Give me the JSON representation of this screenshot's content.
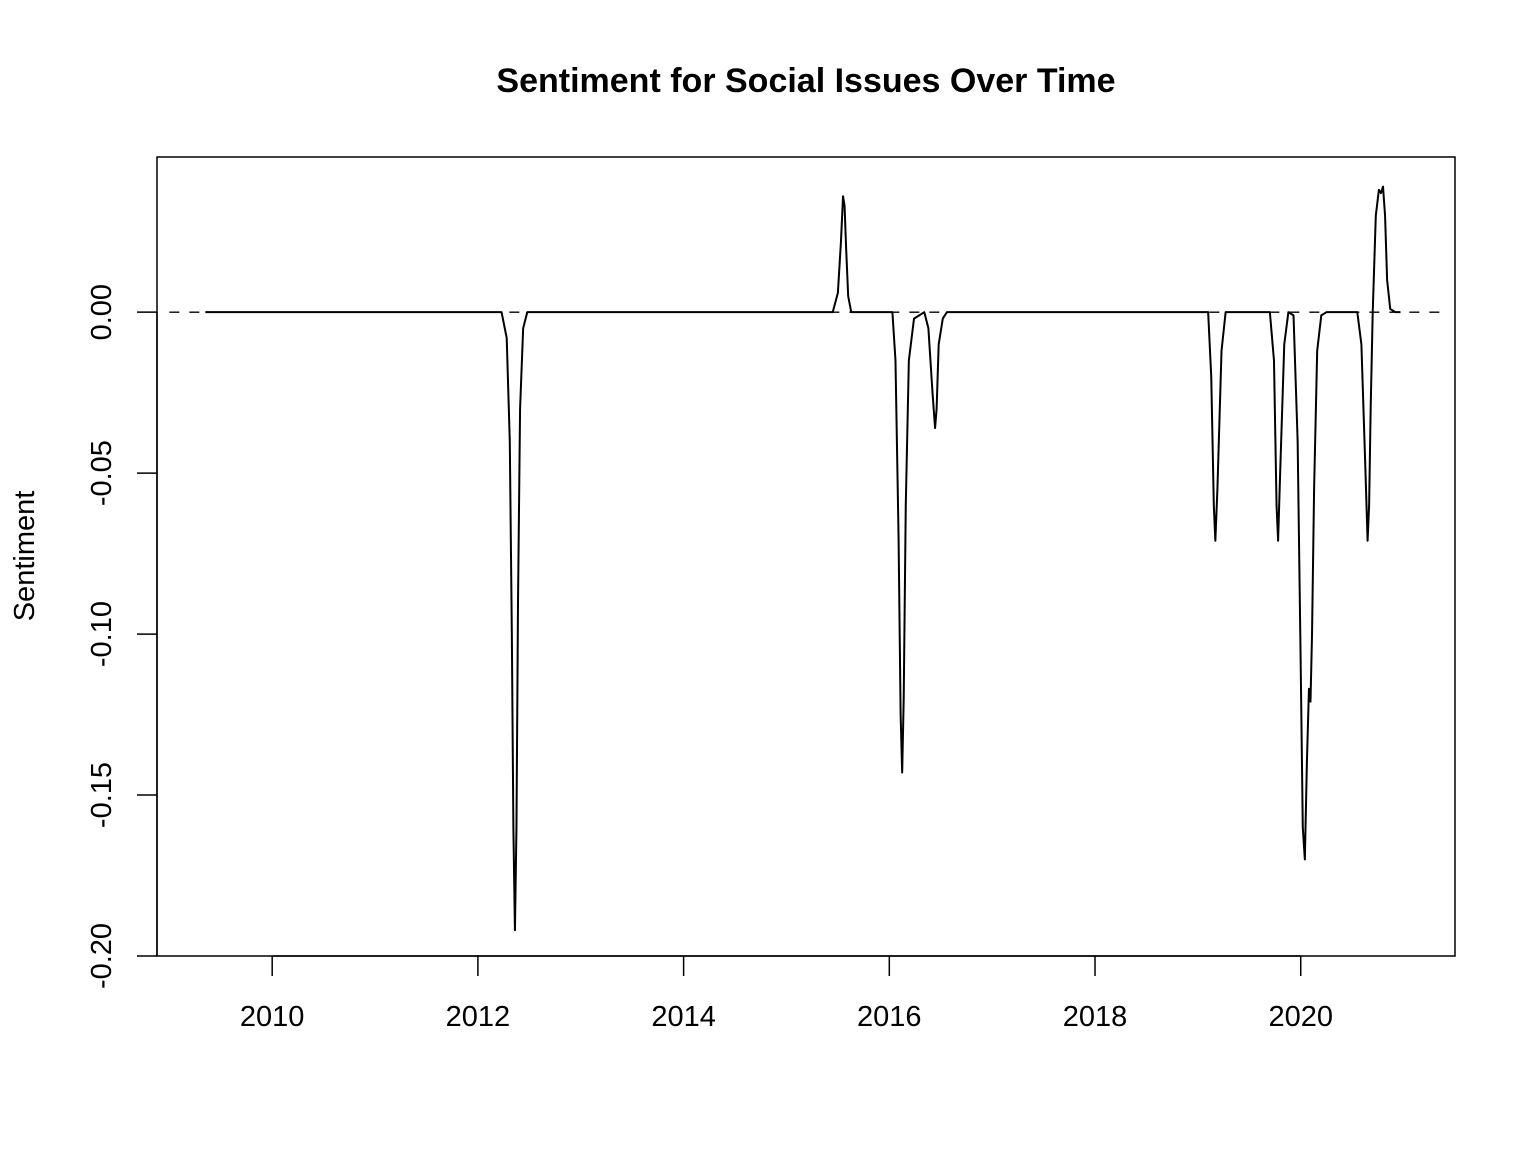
{
  "chart_data": {
    "type": "line",
    "title": "Sentiment for Social Issues Over Time",
    "xlabel": "",
    "ylabel": "Sentiment",
    "xlim": [
      2008.88,
      2021.5
    ],
    "ylim": [
      -0.2,
      0.0482
    ],
    "x_ticks": [
      2010,
      2012,
      2014,
      2016,
      2018,
      2020
    ],
    "x_tick_labels": [
      "2010",
      "2012",
      "2014",
      "2016",
      "2018",
      "2020"
    ],
    "y_ticks": [
      0.0,
      -0.05,
      -0.1,
      -0.15,
      -0.2
    ],
    "y_tick_labels": [
      "0.00",
      "-0.05",
      "-0.10",
      "-0.15",
      "-0.20"
    ],
    "grid": false,
    "reference_line": {
      "y": 0,
      "style": "dashed",
      "x_range": [
        2009.0,
        2021.4
      ]
    },
    "series": [
      {
        "color": "#000000",
        "x": [
          2009.35,
          2012.23,
          2012.28,
          2012.31,
          2012.33,
          2012.345,
          2012.36,
          2012.375,
          2012.39,
          2012.41,
          2012.44,
          2012.48,
          2015.45,
          2015.5,
          2015.53,
          2015.55,
          2015.565,
          2015.58,
          2015.6,
          2015.63,
          2015.68,
          2016.03,
          2016.06,
          2016.09,
          2016.11,
          2016.125,
          2016.14,
          2016.16,
          2016.19,
          2016.24,
          2016.34,
          2016.38,
          2016.42,
          2016.445,
          2016.46,
          2016.48,
          2016.52,
          2016.56,
          2019.1,
          2019.13,
          2019.155,
          2019.17,
          2019.19,
          2019.23,
          2019.27,
          2019.7,
          2019.74,
          2019.765,
          2019.78,
          2019.8,
          2019.84,
          2019.88,
          2019.93,
          2019.97,
          2020.0,
          2020.02,
          2020.04,
          2020.06,
          2020.08,
          2020.095,
          2020.11,
          2020.13,
          2020.16,
          2020.2,
          2020.25,
          2020.55,
          2020.59,
          2020.63,
          2020.65,
          2020.665,
          2020.68,
          2020.7,
          2020.73,
          2020.76,
          2020.78,
          2020.8,
          2020.82,
          2020.84,
          2020.87,
          2020.92,
          2020.97
        ],
        "y": [
          0.0,
          0.0,
          -0.008,
          -0.04,
          -0.1,
          -0.16,
          -0.192,
          -0.16,
          -0.09,
          -0.03,
          -0.005,
          0.0,
          0.0,
          0.006,
          0.022,
          0.036,
          0.033,
          0.02,
          0.005,
          0.0,
          0.0,
          0.0,
          -0.015,
          -0.07,
          -0.125,
          -0.143,
          -0.12,
          -0.06,
          -0.015,
          -0.002,
          0.0,
          -0.005,
          -0.025,
          -0.036,
          -0.03,
          -0.01,
          -0.002,
          0.0,
          0.0,
          -0.02,
          -0.06,
          -0.071,
          -0.055,
          -0.012,
          0.0,
          0.0,
          -0.015,
          -0.06,
          -0.071,
          -0.05,
          -0.01,
          0.0,
          -0.001,
          -0.04,
          -0.11,
          -0.16,
          -0.17,
          -0.14,
          -0.117,
          -0.121,
          -0.1,
          -0.055,
          -0.012,
          -0.001,
          0.0,
          0.0,
          -0.01,
          -0.05,
          -0.071,
          -0.06,
          -0.03,
          0.0,
          0.03,
          0.038,
          0.037,
          0.039,
          0.03,
          0.01,
          0.001,
          0.0,
          0.0
        ]
      }
    ]
  }
}
